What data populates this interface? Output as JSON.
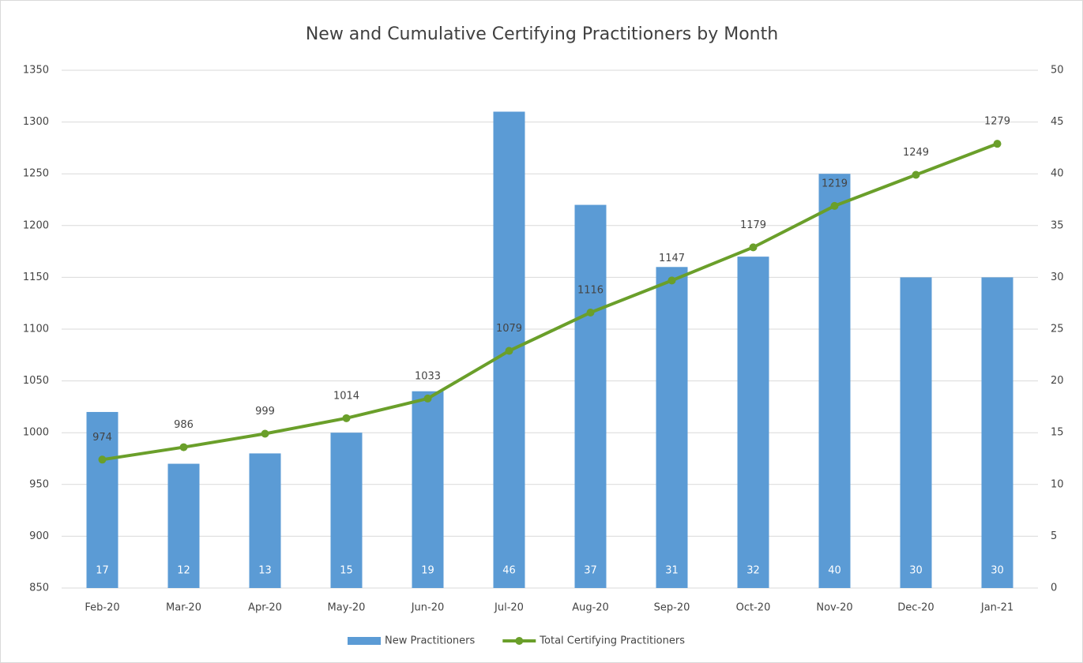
{
  "chart_data": {
    "type": "bar_line",
    "title": "New and Cumulative Certifying Practitioners by Month",
    "categories": [
      "Feb-20",
      "Mar-20",
      "Apr-20",
      "May-20",
      "Jun-20",
      "Jul-20",
      "Aug-20",
      "Sep-20",
      "Oct-20",
      "Nov-20",
      "Dec-20",
      "Jan-21"
    ],
    "series": [
      {
        "name": "New Practitioners",
        "type": "bar",
        "axis": "y2",
        "color": "#5b9bd5",
        "values": [
          17,
          12,
          13,
          15,
          19,
          46,
          37,
          31,
          32,
          40,
          30,
          30
        ]
      },
      {
        "name": "Total Certifying Practitioners",
        "type": "line",
        "axis": "y",
        "color": "#6a9f2a",
        "values": [
          974,
          986,
          999,
          1014,
          1033,
          1079,
          1116,
          1147,
          1179,
          1219,
          1249,
          1279
        ]
      }
    ],
    "ylim": [
      850,
      1350
    ],
    "yticks": [
      850,
      900,
      950,
      1000,
      1050,
      1100,
      1150,
      1200,
      1250,
      1300,
      1350
    ],
    "y2lim": [
      0,
      50
    ],
    "y2ticks": [
      0,
      5,
      10,
      15,
      20,
      25,
      30,
      35,
      40,
      45,
      50
    ],
    "grid": true,
    "legend": "bottom"
  }
}
